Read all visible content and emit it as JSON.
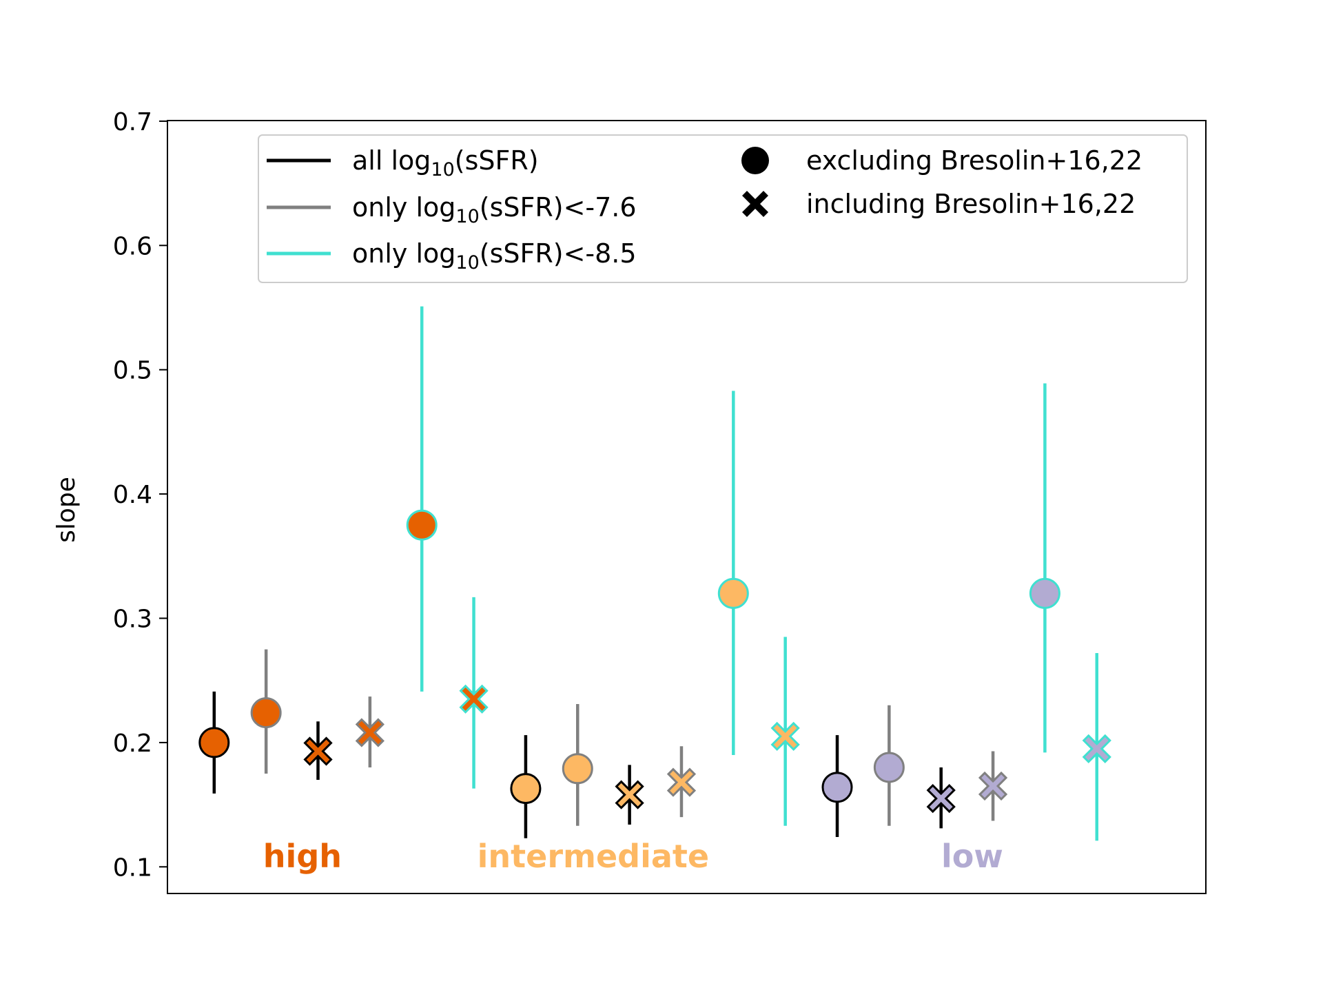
{
  "chart_data": {
    "type": "scatter",
    "title": "",
    "xlabel": "",
    "ylabel": "slope",
    "ylim": [
      0.08,
      0.7
    ],
    "yticks": [
      0.1,
      0.2,
      0.3,
      0.4,
      0.5,
      0.6,
      0.7
    ],
    "ytick_labels": [
      "0.1",
      "0.2",
      "0.3",
      "0.4",
      "0.5",
      "0.6",
      "0.7"
    ],
    "xlim": [
      0,
      20
    ],
    "grid": false,
    "legend_position": "top",
    "colors": {
      "high": "#e66101",
      "intermediate": "#fdb863",
      "low": "#b2abd2",
      "all": "#000000",
      "cut76": "#808080",
      "cut85": "#40e0d0"
    },
    "legend": {
      "lines": [
        {
          "key": "all",
          "pre": "all log",
          "sub": "10",
          "post": "(sSFR)"
        },
        {
          "key": "cut76",
          "pre": "only log",
          "sub": "10",
          "post": "(sSFR)<-7.6"
        },
        {
          "key": "cut85",
          "pre": "only log",
          "sub": "10",
          "post": "(sSFR)<-8.5"
        }
      ],
      "markers": [
        {
          "marker": "circle",
          "label": "excluding Bresolin+16,22"
        },
        {
          "marker": "x",
          "label": "including Bresolin+16,22"
        }
      ]
    },
    "groups": [
      {
        "key": "high",
        "label": "high",
        "label_x": 2.6
      },
      {
        "key": "intermediate",
        "label": "intermediate",
        "label_x": 8.2
      },
      {
        "key": "low",
        "label": "low",
        "label_x": 15.5
      }
    ],
    "points": [
      {
        "group": "high",
        "cut": "all",
        "marker": "circle",
        "x": 0.9,
        "y": 0.2,
        "lo": 0.159,
        "hi": 0.241
      },
      {
        "group": "high",
        "cut": "cut76",
        "marker": "circle",
        "x": 1.9,
        "y": 0.224,
        "lo": 0.175,
        "hi": 0.275
      },
      {
        "group": "high",
        "cut": "all",
        "marker": "x",
        "x": 2.9,
        "y": 0.193,
        "lo": 0.17,
        "hi": 0.217
      },
      {
        "group": "high",
        "cut": "cut76",
        "marker": "x",
        "x": 3.9,
        "y": 0.208,
        "lo": 0.18,
        "hi": 0.237
      },
      {
        "group": "high",
        "cut": "cut85",
        "marker": "circle",
        "x": 4.9,
        "y": 0.375,
        "lo": 0.241,
        "hi": 0.551
      },
      {
        "group": "high",
        "cut": "cut85",
        "marker": "x",
        "x": 5.9,
        "y": 0.235,
        "lo": 0.163,
        "hi": 0.317
      },
      {
        "group": "intermediate",
        "cut": "all",
        "marker": "circle",
        "x": 6.9,
        "y": 0.163,
        "lo": 0.123,
        "hi": 0.206
      },
      {
        "group": "intermediate",
        "cut": "cut76",
        "marker": "circle",
        "x": 7.9,
        "y": 0.179,
        "lo": 0.133,
        "hi": 0.231
      },
      {
        "group": "intermediate",
        "cut": "all",
        "marker": "x",
        "x": 8.9,
        "y": 0.158,
        "lo": 0.134,
        "hi": 0.182
      },
      {
        "group": "intermediate",
        "cut": "cut76",
        "marker": "x",
        "x": 9.9,
        "y": 0.168,
        "lo": 0.14,
        "hi": 0.197
      },
      {
        "group": "intermediate",
        "cut": "cut85",
        "marker": "circle",
        "x": 10.9,
        "y": 0.32,
        "lo": 0.19,
        "hi": 0.483
      },
      {
        "group": "intermediate",
        "cut": "cut85",
        "marker": "x",
        "x": 11.9,
        "y": 0.205,
        "lo": 0.133,
        "hi": 0.285
      },
      {
        "group": "low",
        "cut": "all",
        "marker": "circle",
        "x": 12.9,
        "y": 0.164,
        "lo": 0.124,
        "hi": 0.206
      },
      {
        "group": "low",
        "cut": "cut76",
        "marker": "circle",
        "x": 13.9,
        "y": 0.18,
        "lo": 0.133,
        "hi": 0.23
      },
      {
        "group": "low",
        "cut": "all",
        "marker": "x",
        "x": 14.9,
        "y": 0.155,
        "lo": 0.131,
        "hi": 0.18
      },
      {
        "group": "low",
        "cut": "cut76",
        "marker": "x",
        "x": 15.9,
        "y": 0.165,
        "lo": 0.137,
        "hi": 0.193
      },
      {
        "group": "low",
        "cut": "cut85",
        "marker": "circle",
        "x": 16.9,
        "y": 0.32,
        "lo": 0.192,
        "hi": 0.489
      },
      {
        "group": "low",
        "cut": "cut85",
        "marker": "x",
        "x": 17.9,
        "y": 0.195,
        "lo": 0.121,
        "hi": 0.272
      }
    ]
  }
}
